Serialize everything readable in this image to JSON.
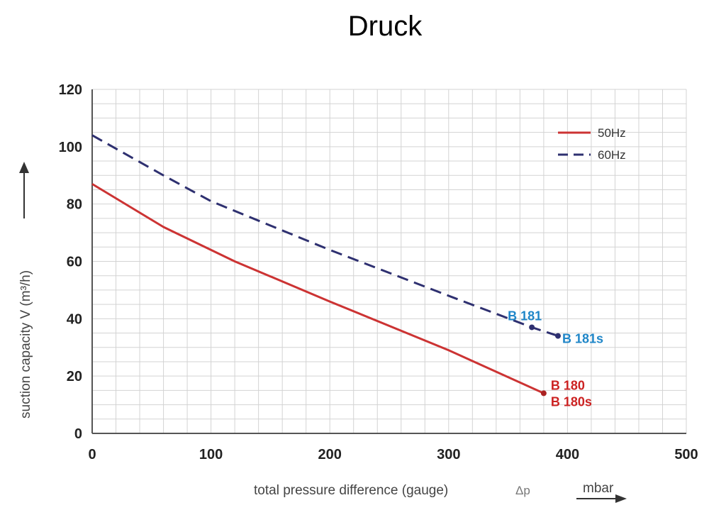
{
  "chart_data": {
    "type": "line",
    "title": "Druck",
    "xlabel": "total pressure difference (gauge)",
    "xlabel_symbol": "Δp",
    "xunit": "mbar",
    "ylabel": "suction capacity V (m³/h)",
    "xlim": [
      0,
      500
    ],
    "ylim": [
      0,
      120
    ],
    "xticks": [
      0,
      100,
      200,
      300,
      400,
      500
    ],
    "yticks": [
      0,
      20,
      40,
      60,
      80,
      100,
      120
    ],
    "grid": true,
    "legend_position": "top-right",
    "series": [
      {
        "name": "50Hz",
        "color": "#cc3333",
        "style": "solid",
        "x": [
          0,
          60,
          120,
          200,
          300,
          380
        ],
        "y": [
          87,
          72,
          60,
          46,
          29,
          14
        ]
      },
      {
        "name": "60Hz",
        "color": "#2e3070",
        "style": "dashed",
        "x": [
          0,
          60,
          100,
          200,
          300,
          370,
          392
        ],
        "y": [
          104,
          90,
          81,
          64,
          48,
          37,
          34
        ]
      }
    ],
    "point_labels": [
      {
        "text": "B 181",
        "x": 370,
        "y": 37,
        "color": "#1f86c8"
      },
      {
        "text": "B 181s",
        "x": 392,
        "y": 34,
        "color": "#1f86c8"
      },
      {
        "text": "B 180",
        "x": 380,
        "y": 14,
        "color": "#cc2222"
      },
      {
        "text": "B 180s",
        "x": 380,
        "y": 14,
        "color": "#cc2222"
      }
    ]
  }
}
